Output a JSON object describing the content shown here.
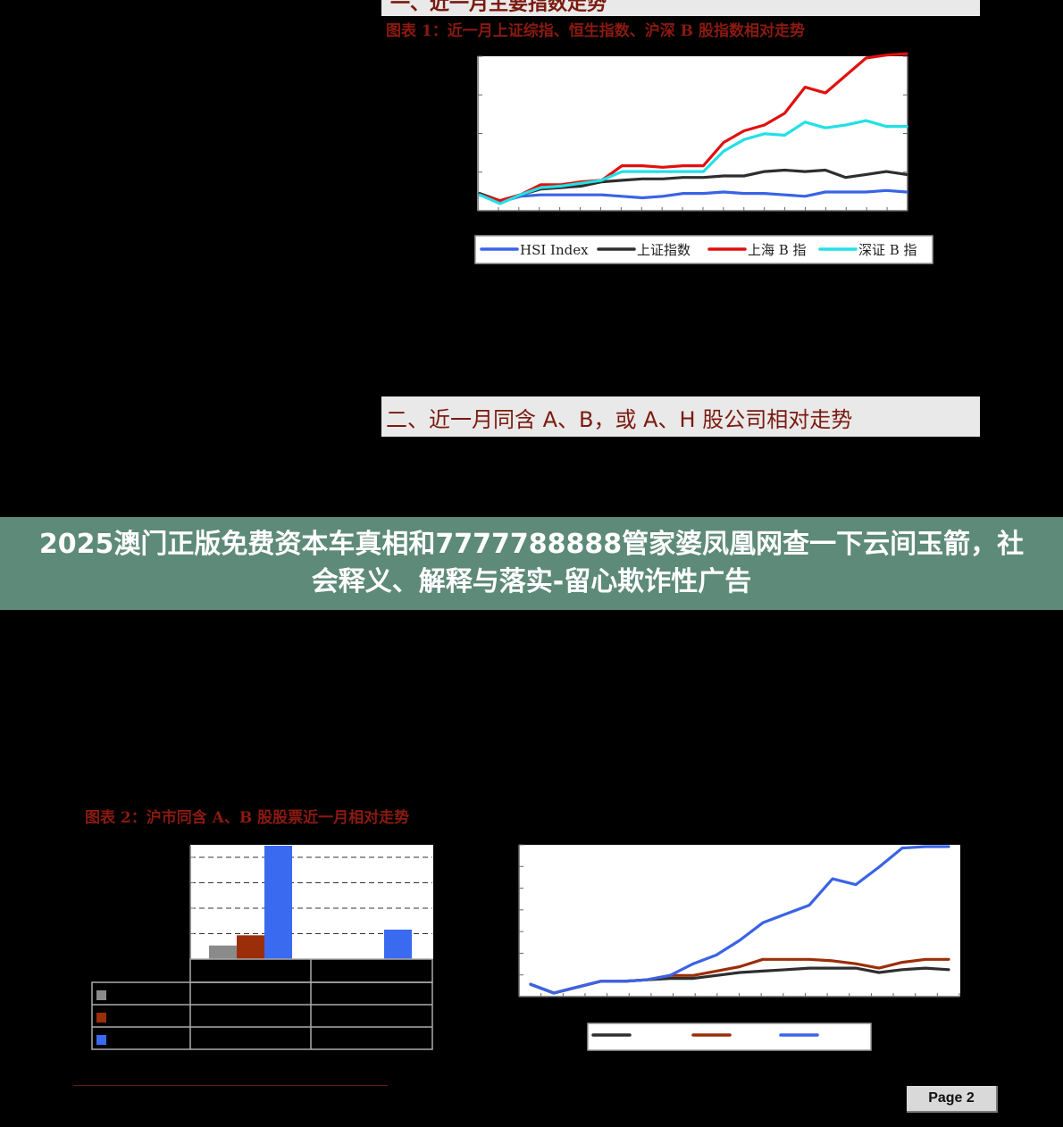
{
  "header_fragment": "一、近一月主要指数走势",
  "fig1": {
    "caption": "图表 1：近一月上证综指、恒生指数、沪深 B 股指数相对走势"
  },
  "section2_title": "二、近一月同含 A、B，或 A、H 股公司相对走势",
  "banner_text": "2025澳门正版免费资本车真相和7777788888管家婆凤凰网查一下云间玉箭，社会释义、解释与落实-留心欺诈性广告",
  "fig2": {
    "caption": "图表 2：沪市同含 A、B 股股票近一月相对走势"
  },
  "page_label": "Page 2",
  "colors": {
    "blue": "#3a63e6",
    "black": "#2e2e2e",
    "red": "#e01010",
    "cyan": "#22e0e6",
    "gray": "#8a8a8a",
    "brown": "#9b2e08",
    "bar_blue": "#3a6af0"
  },
  "chart_data": [
    {
      "id": "fig1",
      "type": "line",
      "ylim": [
        0,
        100
      ],
      "n_points": 22,
      "legend_position": "bottom",
      "series": [
        {
          "name": "HSI  Index",
          "color": "#3a63e6",
          "values": [
            6,
            1,
            5,
            6,
            6,
            6,
            6,
            5,
            4,
            5,
            7,
            7,
            8,
            7,
            7,
            6,
            5,
            8,
            8,
            8,
            9,
            8
          ]
        },
        {
          "name": "上证指数",
          "color": "#2e2e2e",
          "values": [
            7,
            2,
            6,
            10,
            11,
            12,
            15,
            16,
            17,
            17,
            18,
            18,
            19,
            19,
            22,
            23,
            22,
            23,
            18,
            20,
            22,
            20
          ]
        },
        {
          "name": "上海 B 指",
          "color": "#e01010",
          "values": [
            6,
            2,
            6,
            13,
            13,
            15,
            16,
            26,
            26,
            25,
            26,
            26,
            42,
            50,
            54,
            62,
            80,
            76,
            88,
            100,
            102,
            103
          ]
        },
        {
          "name": "深证 B 指",
          "color": "#22e0e6",
          "values": [
            6,
            0,
            6,
            11,
            12,
            14,
            16,
            22,
            22,
            22,
            22,
            22,
            36,
            44,
            48,
            47,
            56,
            52,
            54,
            57,
            53,
            53
          ]
        }
      ]
    },
    {
      "id": "fig2-bar",
      "type": "bar",
      "categories": [
        "",
        ""
      ],
      "ylim": [
        0,
        100
      ],
      "series": [
        {
          "name": "",
          "color": "#8a8a8a",
          "values": [
            12,
            0
          ]
        },
        {
          "name": "",
          "color": "#9b2e08",
          "values": [
            21,
            0
          ]
        },
        {
          "name": "",
          "color": "#3a6af0",
          "values": [
            100,
            26
          ]
        }
      ]
    },
    {
      "id": "fig2-line",
      "type": "line",
      "ylim": [
        0,
        100
      ],
      "n_points": 19,
      "series": [
        {
          "name": "",
          "color": "#2e2e2e",
          "values": [
            6,
            0,
            4,
            8,
            8,
            9,
            10,
            10,
            12,
            14,
            15,
            16,
            17,
            17,
            17,
            14,
            16,
            17,
            16
          ]
        },
        {
          "name": "",
          "color": "#9b2e08",
          "values": [
            6,
            0,
            4,
            8,
            8,
            9,
            12,
            12,
            15,
            18,
            23,
            23,
            23,
            22,
            20,
            17,
            21,
            23,
            23
          ]
        },
        {
          "name": "",
          "color": "#3a63e6",
          "values": [
            6,
            0,
            4,
            8,
            8,
            9,
            12,
            20,
            26,
            36,
            48,
            54,
            60,
            78,
            74,
            86,
            99,
            100,
            100
          ]
        }
      ]
    }
  ]
}
